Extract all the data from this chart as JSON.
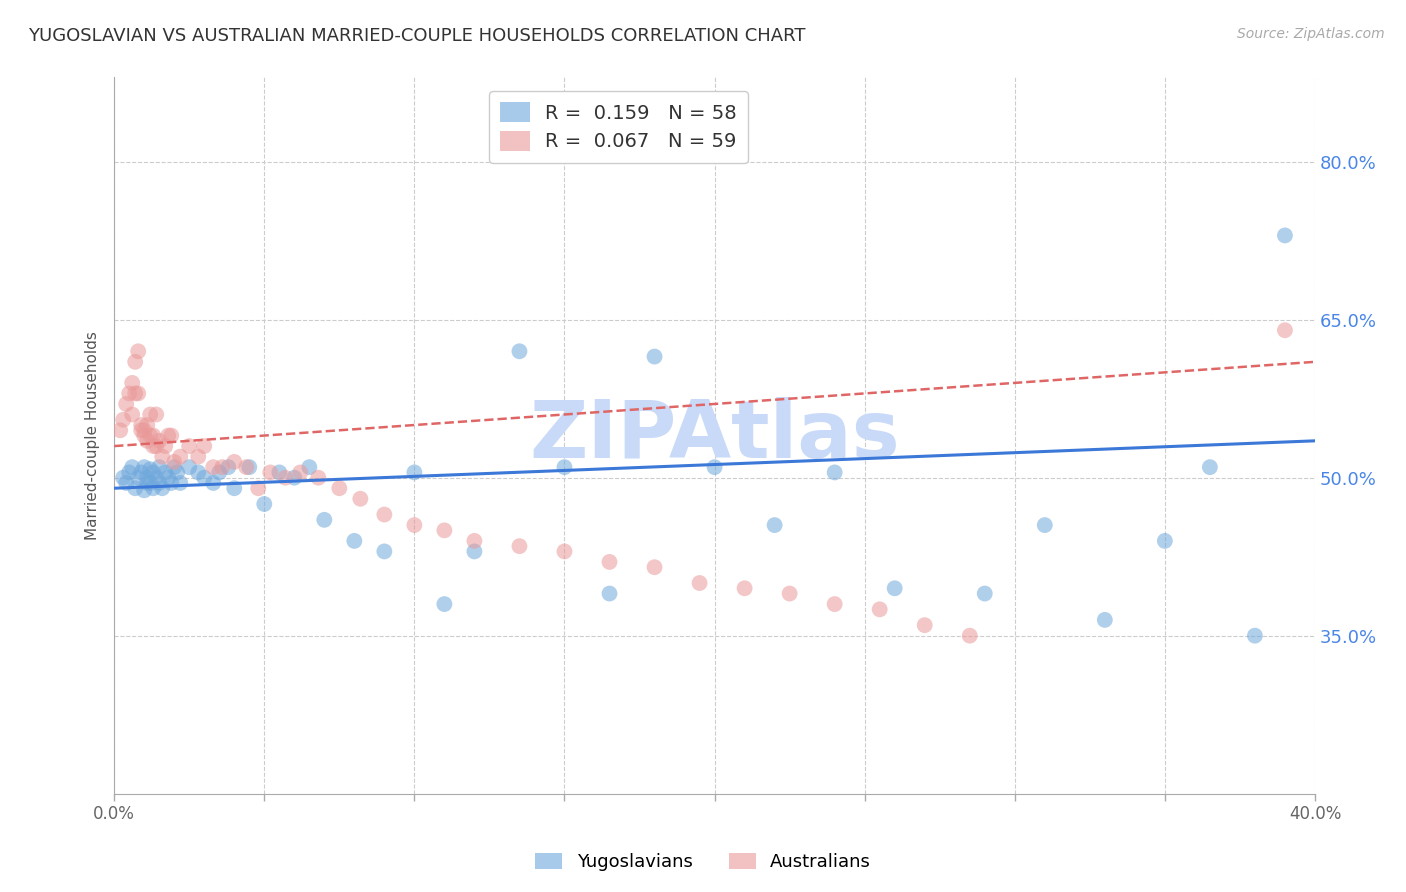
{
  "title": "YUGOSLAVIAN VS AUSTRALIAN MARRIED-COUPLE HOUSEHOLDS CORRELATION CHART",
  "source": "Source: ZipAtlas.com",
  "ylabel": "Married-couple Households",
  "ytick_labels": [
    "35.0%",
    "50.0%",
    "65.0%",
    "80.0%"
  ],
  "ytick_values": [
    0.35,
    0.5,
    0.65,
    0.8
  ],
  "xlim": [
    0.0,
    0.4
  ],
  "ylim": [
    0.2,
    0.88
  ],
  "legend_blue_R": "0.159",
  "legend_blue_N": "58",
  "legend_pink_R": "0.067",
  "legend_pink_N": "59",
  "legend_label_blue": "Yugoslavians",
  "legend_label_pink": "Australians",
  "color_blue": "#6fa8dc",
  "color_pink": "#ea9999",
  "color_blue_line": "#3c78d8",
  "color_pink_line": "#e06666",
  "watermark": "ZIPAtlas",
  "watermark_color": "#c9daf8",
  "background_color": "#ffffff",
  "title_fontsize": 13,
  "ytick_color": "#4a86e8",
  "xtick_color": "#666666",
  "blue_x": [
    0.003,
    0.004,
    0.005,
    0.006,
    0.007,
    0.008,
    0.009,
    0.01,
    0.01,
    0.011,
    0.011,
    0.012,
    0.012,
    0.013,
    0.013,
    0.014,
    0.015,
    0.015,
    0.016,
    0.017,
    0.018,
    0.019,
    0.02,
    0.021,
    0.022,
    0.025,
    0.028,
    0.03,
    0.033,
    0.035,
    0.038,
    0.04,
    0.045,
    0.05,
    0.055,
    0.06,
    0.065,
    0.07,
    0.08,
    0.09,
    0.1,
    0.11,
    0.12,
    0.135,
    0.15,
    0.165,
    0.18,
    0.2,
    0.22,
    0.24,
    0.26,
    0.29,
    0.31,
    0.33,
    0.35,
    0.365,
    0.38,
    0.39
  ],
  "blue_y": [
    0.5,
    0.495,
    0.505,
    0.51,
    0.49,
    0.5,
    0.505,
    0.488,
    0.51,
    0.495,
    0.5,
    0.495,
    0.508,
    0.49,
    0.505,
    0.5,
    0.495,
    0.51,
    0.49,
    0.505,
    0.5,
    0.495,
    0.51,
    0.505,
    0.495,
    0.51,
    0.505,
    0.5,
    0.495,
    0.505,
    0.51,
    0.49,
    0.51,
    0.475,
    0.505,
    0.5,
    0.51,
    0.46,
    0.44,
    0.43,
    0.505,
    0.38,
    0.43,
    0.62,
    0.51,
    0.39,
    0.615,
    0.51,
    0.455,
    0.505,
    0.395,
    0.39,
    0.455,
    0.365,
    0.44,
    0.51,
    0.35,
    0.73
  ],
  "pink_x": [
    0.002,
    0.003,
    0.004,
    0.005,
    0.006,
    0.006,
    0.007,
    0.007,
    0.008,
    0.008,
    0.009,
    0.009,
    0.01,
    0.01,
    0.011,
    0.011,
    0.012,
    0.012,
    0.013,
    0.013,
    0.014,
    0.014,
    0.015,
    0.016,
    0.017,
    0.018,
    0.019,
    0.02,
    0.022,
    0.025,
    0.028,
    0.03,
    0.033,
    0.036,
    0.04,
    0.044,
    0.048,
    0.052,
    0.057,
    0.062,
    0.068,
    0.075,
    0.082,
    0.09,
    0.1,
    0.11,
    0.12,
    0.135,
    0.15,
    0.165,
    0.18,
    0.195,
    0.21,
    0.225,
    0.24,
    0.255,
    0.27,
    0.285,
    0.39
  ],
  "pink_y": [
    0.545,
    0.555,
    0.57,
    0.58,
    0.56,
    0.59,
    0.61,
    0.58,
    0.62,
    0.58,
    0.55,
    0.545,
    0.54,
    0.545,
    0.55,
    0.535,
    0.54,
    0.56,
    0.53,
    0.54,
    0.53,
    0.56,
    0.535,
    0.52,
    0.53,
    0.54,
    0.54,
    0.515,
    0.52,
    0.53,
    0.52,
    0.53,
    0.51,
    0.51,
    0.515,
    0.51,
    0.49,
    0.505,
    0.5,
    0.505,
    0.5,
    0.49,
    0.48,
    0.465,
    0.455,
    0.45,
    0.44,
    0.435,
    0.43,
    0.42,
    0.415,
    0.4,
    0.395,
    0.39,
    0.38,
    0.375,
    0.36,
    0.35,
    0.64
  ],
  "grid_color": "#cccccc",
  "grid_linestyle": "--",
  "grid_linewidth": 0.8,
  "blue_line_x0": 0.0,
  "blue_line_x1": 0.4,
  "blue_line_y0": 0.49,
  "blue_line_y1": 0.535,
  "pink_line_x0": 0.0,
  "pink_line_x1": 0.4,
  "pink_line_y0": 0.53,
  "pink_line_y1": 0.61
}
